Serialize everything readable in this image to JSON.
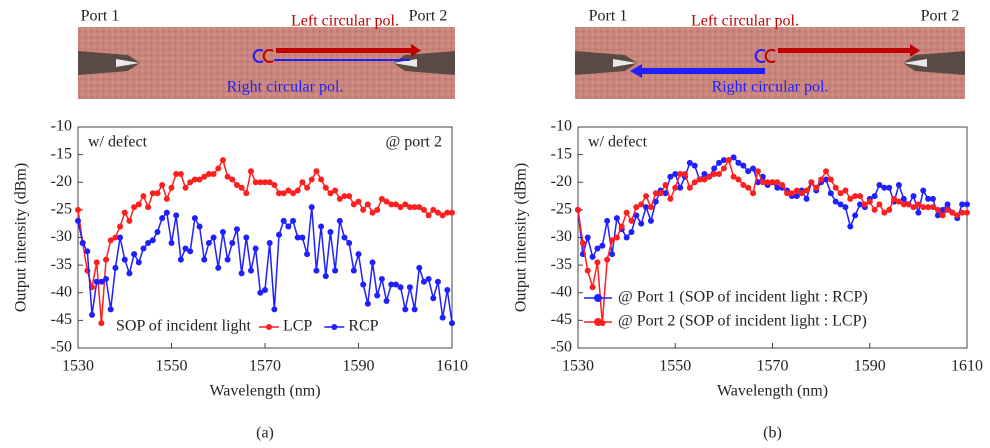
{
  "chart_data": [
    {
      "type": "line",
      "panel_label": "(a)",
      "device": {
        "port_left": "Port 1",
        "port_right": "Port 2",
        "top_label": "Left circular pol.",
        "bottom_label": "Right circular pol."
      },
      "xlabel": "Wavelength (nm)",
      "ylabel": "Output intensity (dBm)",
      "xlim": [
        1530,
        1610
      ],
      "xticks": [
        1530,
        1550,
        1570,
        1590,
        1610
      ],
      "ylim": [
        -50,
        -10
      ],
      "yticks": [
        -10,
        -15,
        -20,
        -25,
        -30,
        -35,
        -40,
        -45,
        -50
      ],
      "annotations": [
        {
          "text": "w/ defect",
          "position": "upper left"
        },
        {
          "text": "@ port 2",
          "position": "upper right"
        }
      ],
      "legend": "lower center",
      "legend_title": "SOP of incident light",
      "x": [
        1530,
        1531,
        1532,
        1533,
        1534,
        1535,
        1536,
        1537,
        1538,
        1539,
        1540,
        1541,
        1542,
        1543,
        1544,
        1545,
        1546,
        1547,
        1548,
        1549,
        1550,
        1551,
        1552,
        1553,
        1554,
        1555,
        1556,
        1557,
        1558,
        1559,
        1560,
        1561,
        1562,
        1563,
        1564,
        1565,
        1566,
        1567,
        1568,
        1569,
        1570,
        1571,
        1572,
        1573,
        1574,
        1575,
        1576,
        1577,
        1578,
        1579,
        1580,
        1581,
        1582,
        1583,
        1584,
        1585,
        1586,
        1587,
        1588,
        1589,
        1590,
        1591,
        1592,
        1593,
        1594,
        1595,
        1596,
        1597,
        1598,
        1599,
        1600,
        1601,
        1602,
        1603,
        1604,
        1605,
        1606,
        1607,
        1608,
        1609,
        1610
      ],
      "series": [
        {
          "name": "LCP",
          "color": "#ff1f1f",
          "values": [
            -25,
            -31,
            -36,
            -39,
            -34.5,
            -45.5,
            -34,
            -30.5,
            -30,
            -28,
            -25.5,
            -27,
            -24.5,
            -24,
            -22.5,
            -24.5,
            -22,
            -22,
            -20.5,
            -23,
            -21,
            -18.5,
            -18.5,
            -21,
            -20,
            -19.5,
            -19.5,
            -19,
            -18.5,
            -18.5,
            -17.5,
            -16,
            -19,
            -19.5,
            -20.5,
            -21,
            -22,
            -18,
            -20,
            -20,
            -20,
            -20,
            -20.5,
            -22,
            -22,
            -21.5,
            -22,
            -21.5,
            -20,
            -21,
            -19.5,
            -18,
            -19.5,
            -21,
            -22,
            -21.5,
            -23,
            -22.5,
            -22.5,
            -24,
            -23.5,
            -25,
            -24,
            -25.5,
            -25,
            -23,
            -23.5,
            -24,
            -24,
            -24.5,
            -24,
            -24.5,
            -24.5,
            -24.5,
            -25,
            -26,
            -25,
            -25.5,
            -26,
            -25.5,
            -25.5
          ]
        },
        {
          "name": "RCP",
          "color": "#1f1fff",
          "values": [
            -27,
            -31,
            -32.5,
            -44,
            -38,
            -38,
            -37.5,
            -43,
            -35.5,
            -30,
            -34,
            -36.5,
            -33,
            -34.5,
            -32,
            -31,
            -30.5,
            -29,
            -26.5,
            -25.5,
            -31,
            -26,
            -34,
            -32,
            -32.5,
            -26.5,
            -28,
            -34,
            -31,
            -30,
            -35.5,
            -29,
            -34,
            -31,
            -28.5,
            -36.5,
            -30,
            -36,
            -32,
            -40,
            -39.5,
            -31,
            -43,
            -29.5,
            -27,
            -28,
            -27,
            -30,
            -30,
            -33,
            -24.5,
            -36,
            -28,
            -37,
            -29,
            -36,
            -27,
            -30,
            -31,
            -36,
            -33,
            -38.5,
            -42,
            -34.5,
            -40.5,
            -37.5,
            -41.5,
            -38.5,
            -38.5,
            -39,
            -43,
            -39,
            -43,
            -35.5,
            -38,
            -37.5,
            -41,
            -38,
            -44.5,
            -39.5,
            -45.5
          ]
        }
      ]
    },
    {
      "type": "line",
      "panel_label": "(b)",
      "device": {
        "port_left": "Port 1",
        "port_right": "Port 2",
        "top_label": "Left circular pol.",
        "bottom_label": "Right circular pol."
      },
      "xlabel": "Wavelength (nm)",
      "ylabel": "Output intensity (dBm)",
      "xlim": [
        1530,
        1610
      ],
      "xticks": [
        1530,
        1550,
        1570,
        1590,
        1610
      ],
      "ylim": [
        -50,
        -10
      ],
      "yticks": [
        -10,
        -15,
        -20,
        -25,
        -30,
        -35,
        -40,
        -45,
        -50
      ],
      "annotations": [
        {
          "text": "w/ defect",
          "position": "upper left"
        }
      ],
      "legend": "lower left",
      "x": [
        1530,
        1531,
        1532,
        1533,
        1534,
        1535,
        1536,
        1537,
        1538,
        1539,
        1540,
        1541,
        1542,
        1543,
        1544,
        1545,
        1546,
        1547,
        1548,
        1549,
        1550,
        1551,
        1552,
        1553,
        1554,
        1555,
        1556,
        1557,
        1558,
        1559,
        1560,
        1561,
        1562,
        1563,
        1564,
        1565,
        1566,
        1567,
        1568,
        1569,
        1570,
        1571,
        1572,
        1573,
        1574,
        1575,
        1576,
        1577,
        1578,
        1579,
        1580,
        1581,
        1582,
        1583,
        1584,
        1585,
        1586,
        1587,
        1588,
        1589,
        1590,
        1591,
        1592,
        1593,
        1594,
        1595,
        1596,
        1597,
        1598,
        1599,
        1600,
        1601,
        1602,
        1603,
        1604,
        1605,
        1606,
        1607,
        1608,
        1609,
        1610
      ],
      "series": [
        {
          "name": "@ Port 1 (SOP of incident light : RCP)",
          "color": "#1f1fff",
          "values": [
            -25,
            -33,
            -30,
            -33.5,
            -32,
            -31.5,
            -27,
            -33,
            -26.5,
            -28.5,
            -30,
            -29,
            -26,
            -27.5,
            -24.5,
            -27,
            -23.5,
            -21.5,
            -22,
            -19,
            -18.5,
            -21,
            -19,
            -16.5,
            -17,
            -19.5,
            -18.5,
            -19,
            -17.5,
            -16.5,
            -16,
            -16,
            -15.5,
            -16.5,
            -17,
            -18,
            -17.5,
            -20,
            -19,
            -20.5,
            -20,
            -21,
            -21,
            -21.5,
            -22.5,
            -22.5,
            -21.5,
            -23,
            -20,
            -21.5,
            -20,
            -19.5,
            -22,
            -23.5,
            -24,
            -24.5,
            -28,
            -26,
            -24,
            -24.5,
            -23,
            -22.5,
            -20.5,
            -21,
            -21,
            -23.5,
            -20.5,
            -23,
            -24,
            -22.5,
            -25.5,
            -21.5,
            -23,
            -23,
            -26,
            -25,
            -24,
            -25.5,
            -26.5,
            -24,
            -24
          ]
        },
        {
          "name": "@ Port 2 (SOP of incident light : LCP)",
          "color": "#ff1f1f",
          "values": [
            -25,
            -31,
            -36,
            -39,
            -34.5,
            -45.5,
            -34,
            -30.5,
            -30,
            -28,
            -25.5,
            -27,
            -24.5,
            -24,
            -22.5,
            -24.5,
            -22,
            -22,
            -20.5,
            -23,
            -21,
            -18.5,
            -18.5,
            -21,
            -20,
            -19.5,
            -19.5,
            -19,
            -18.5,
            -18.5,
            -17.5,
            -16,
            -19,
            -19.5,
            -20.5,
            -21,
            -22,
            -18,
            -20,
            -20,
            -20,
            -20,
            -20.5,
            -22,
            -22,
            -21.5,
            -22,
            -21.5,
            -20,
            -21,
            -19.5,
            -18,
            -19.5,
            -21,
            -22,
            -21.5,
            -23,
            -22.5,
            -22.5,
            -24,
            -23.5,
            -25,
            -24,
            -25.5,
            -25,
            -23,
            -23.5,
            -24,
            -24,
            -24.5,
            -24,
            -24.5,
            -24.5,
            -24.5,
            -25,
            -26,
            -25,
            -25.5,
            -26,
            -25.5,
            -25.5
          ]
        }
      ]
    }
  ]
}
